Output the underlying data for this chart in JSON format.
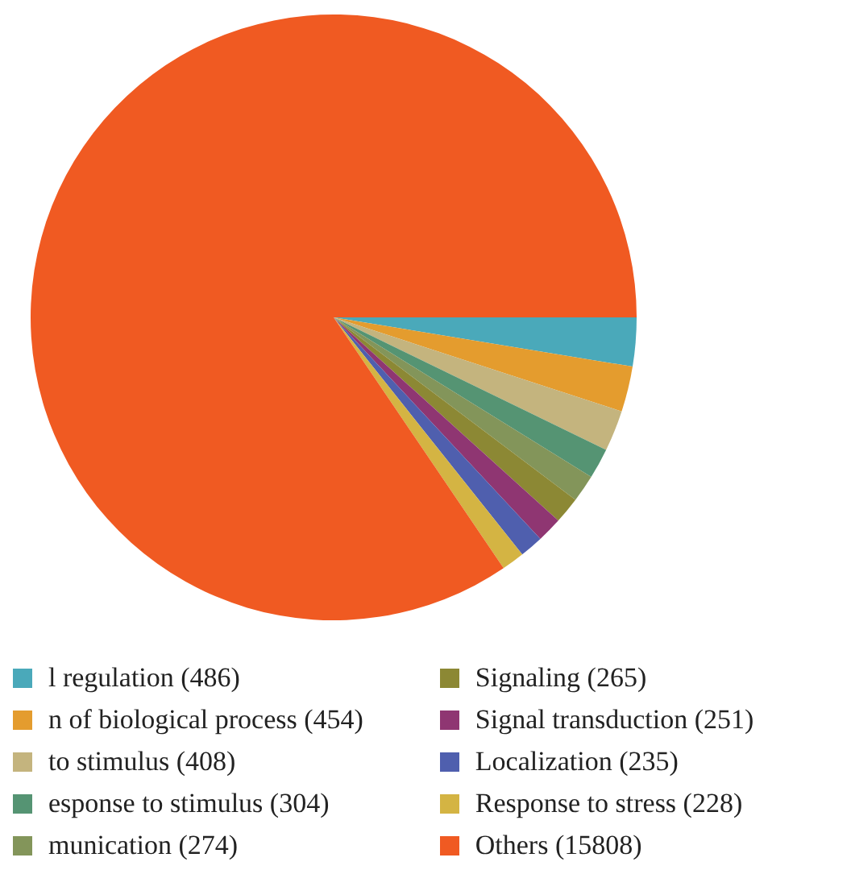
{
  "chart_data": {
    "type": "pie",
    "categories": [
      "l regulation (486)",
      "n of biological process (454)",
      "to stimulus (408)",
      "esponse to stimulus (304)",
      "munication (274)",
      "Signaling (265)",
      "Signal transduction (251)",
      "Localization (235)",
      "Response to stress (228)",
      "Others (15808)"
    ],
    "values": [
      486,
      454,
      408,
      304,
      274,
      265,
      251,
      235,
      228,
      15808
    ],
    "colors": [
      "#4aa9ba",
      "#e49c2e",
      "#c4b47e",
      "#559473",
      "#83955a",
      "#8c8834",
      "#8f3672",
      "#4f5fae",
      "#d4b443",
      "#f05a22"
    ],
    "legend": "bottom"
  }
}
